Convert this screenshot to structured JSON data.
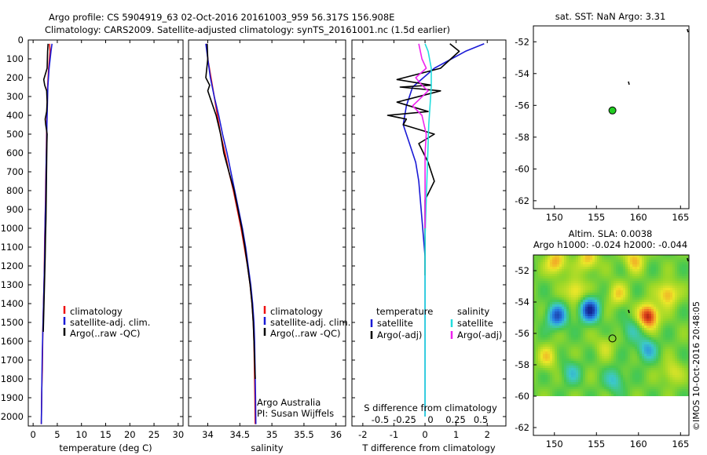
{
  "title_line1": "Argo profile: CS 5904919_63 02-Oct-2016 20161003_959 56.317S 156.908E",
  "title_line2": "Climatology: CARS2009. Satellite-adjusted climatology: synTS_20161001.nc (1.5d earlier)",
  "credit": "©IMOS 10-Oct-2016 20:48:05",
  "colors": {
    "climatology": "#ee1111",
    "satellite": "#1a1ad6",
    "argo": "#000000",
    "sat_salinity": "#22dddd",
    "argo_salinity": "#ee22ee",
    "marker": "#22cc22"
  },
  "chart_data": [
    {
      "type": "line",
      "id": "temperature",
      "xlabel": "temperature (deg C)",
      "ylabel": "",
      "xlim": [
        -1,
        31
      ],
      "ylim": [
        2050,
        0
      ],
      "y_inverted": true,
      "xticks": [
        "0",
        "5",
        "10",
        "15",
        "20",
        "25",
        "30"
      ],
      "yticks": [
        "0",
        "100",
        "200",
        "300",
        "400",
        "500",
        "600",
        "700",
        "800",
        "900",
        "1000",
        "1100",
        "1200",
        "1300",
        "1400",
        "1500",
        "1600",
        "1700",
        "1800",
        "1900",
        "2000"
      ],
      "legend": [
        "climatology",
        "satellite-adj. clim.",
        "Argo(..raw -QC)"
      ],
      "series": [
        {
          "name": "climatology",
          "x": [
            3.4,
            3.5,
            3.2,
            3.0,
            2.9,
            2.8,
            2.75,
            2.7,
            2.6,
            2.55,
            2.5,
            2.4,
            2.35,
            2.3,
            2.2,
            2.1,
            2.0,
            1.95,
            1.9,
            1.8,
            1.75,
            1.7
          ],
          "y": [
            20,
            60,
            150,
            250,
            350,
            450,
            550,
            650,
            750,
            850,
            950,
            1050,
            1150,
            1250,
            1350,
            1450,
            1550,
            1650,
            1750,
            1850,
            1950,
            2040
          ]
        },
        {
          "name": "satellite-adj. clim.",
          "x": [
            3.9,
            3.7,
            3.3,
            3.05,
            2.95,
            2.85,
            2.8,
            2.7,
            2.65,
            2.6,
            2.5,
            2.45,
            2.4,
            2.3,
            2.2,
            2.1,
            2.0,
            1.9,
            1.85,
            1.8,
            1.75,
            1.7
          ],
          "y": [
            20,
            60,
            150,
            250,
            350,
            450,
            550,
            650,
            750,
            850,
            950,
            1050,
            1150,
            1250,
            1350,
            1450,
            1550,
            1650,
            1750,
            1850,
            1950,
            2040
          ]
        },
        {
          "name": "Argo(..raw -QC)",
          "x": [
            3.1,
            3.0,
            2.9,
            2.2,
            2.4,
            2.8,
            2.9,
            2.8,
            2.5,
            2.6,
            2.9,
            2.85,
            2.8,
            2.75,
            2.7,
            2.65,
            2.55,
            2.5,
            2.4,
            2.3,
            2.2,
            2.1
          ],
          "y": [
            20,
            60,
            150,
            210,
            240,
            270,
            330,
            380,
            420,
            450,
            500,
            550,
            650,
            750,
            850,
            950,
            1050,
            1150,
            1250,
            1350,
            1450,
            1550
          ]
        }
      ]
    },
    {
      "type": "line",
      "id": "salinity",
      "xlabel": "salinity",
      "ylabel": "",
      "xlim": [
        33.7,
        36.15
      ],
      "ylim": [
        2050,
        0
      ],
      "y_inverted": true,
      "xticks": [
        "34",
        "34.5",
        "35",
        "35.5",
        "36"
      ],
      "legend": [
        "climatology",
        "satellite-adj. clim.",
        "Argo(..raw -QC)"
      ],
      "annotation": [
        "Argo Australia",
        "PI: Susan Wijffels"
      ],
      "series": [
        {
          "name": "climatology",
          "x": [
            33.98,
            34.0,
            34.05,
            34.1,
            34.15,
            34.2,
            34.27,
            34.33,
            34.4,
            34.46,
            34.52,
            34.57,
            34.62,
            34.66,
            34.69,
            34.71,
            34.72,
            34.725,
            34.73,
            34.735,
            34.74
          ],
          "y": [
            20,
            100,
            200,
            300,
            400,
            500,
            600,
            700,
            800,
            900,
            1000,
            1100,
            1200,
            1300,
            1400,
            1500,
            1600,
            1700,
            1800,
            1900,
            2040
          ]
        },
        {
          "name": "satellite-adj. clim.",
          "x": [
            33.97,
            34.0,
            34.04,
            34.1,
            34.17,
            34.23,
            34.3,
            34.36,
            34.42,
            34.48,
            34.54,
            34.59,
            34.63,
            34.67,
            34.7,
            34.72,
            34.73,
            34.735,
            34.74,
            34.745,
            34.75
          ],
          "y": [
            20,
            100,
            200,
            300,
            400,
            500,
            600,
            700,
            800,
            900,
            1000,
            1100,
            1200,
            1300,
            1400,
            1500,
            1600,
            1700,
            1800,
            1900,
            2040
          ]
        },
        {
          "name": "Argo(..raw -QC)",
          "x": [
            33.99,
            34.0,
            33.97,
            34.03,
            34.0,
            34.08,
            34.13,
            34.2,
            34.25,
            34.33,
            34.41,
            34.47,
            34.53,
            34.58,
            34.62,
            34.66,
            34.69,
            34.71,
            34.72,
            34.73,
            34.74
          ],
          "y": [
            20,
            100,
            200,
            240,
            270,
            350,
            400,
            500,
            600,
            700,
            800,
            900,
            1000,
            1100,
            1200,
            1300,
            1400,
            1500,
            1600,
            1700,
            1800
          ]
        }
      ]
    },
    {
      "type": "line",
      "id": "difference",
      "xlabel": "T difference from climatology",
      "x2label": "S difference from climatology",
      "xlim": [
        -2.35,
        2.6
      ],
      "ylim": [
        2050,
        0
      ],
      "y_inverted": true,
      "xticks": [
        "-2",
        "-1",
        "0",
        "1",
        "2"
      ],
      "x2ticks": [
        "-0.5",
        "-0.25",
        "0",
        "0.25",
        "0.5"
      ],
      "legend_left_title": "temperature",
      "legend_right_title": "salinity",
      "legend_left": [
        "satellite",
        "Argo(-adj)"
      ],
      "legend_right": [
        "satellite",
        "Argo(-adj)"
      ],
      "series": [
        {
          "name": "T satellite",
          "x": [
            1.9,
            1.3,
            0.3,
            -0.4,
            -0.6,
            -0.7,
            -0.5,
            -0.3,
            -0.2,
            -0.15,
            -0.1,
            -0.05,
            0.0,
            0.0,
            0.0,
            0.0,
            0.0,
            0.0,
            0.0,
            0.0,
            0.0
          ],
          "y": [
            20,
            60,
            150,
            250,
            350,
            450,
            550,
            650,
            750,
            850,
            950,
            1050,
            1150,
            1250,
            1350,
            1450,
            1550,
            1650,
            1750,
            1850,
            2000
          ]
        },
        {
          "name": "T Argo(-adj)",
          "x": [
            0.8,
            1.1,
            0.5,
            -0.9,
            0.2,
            -0.8,
            0.5,
            -0.9,
            0.1,
            -1.2,
            -0.6,
            -0.7,
            0.3,
            -0.2,
            0.1,
            0.3,
            0.0,
            0.0,
            0.0,
            0.0,
            0.0
          ],
          "y": [
            20,
            60,
            150,
            210,
            240,
            250,
            270,
            330,
            380,
            400,
            420,
            450,
            500,
            550,
            650,
            750,
            850,
            950,
            1050,
            1150,
            1250
          ]
        },
        {
          "name": "S satellite",
          "x": [
            0.0,
            0.05,
            0.1,
            0.1,
            0.08,
            0.06,
            0.05,
            0.04,
            0.03,
            0.02,
            0.01,
            0.0,
            0.0,
            0.0,
            0.0,
            0.0,
            0.0,
            0.0,
            0.0,
            0.0,
            0.0
          ],
          "y": [
            20,
            60,
            150,
            250,
            350,
            450,
            550,
            650,
            750,
            850,
            950,
            1050,
            1150,
            1250,
            1350,
            1450,
            1550,
            1650,
            1750,
            1850,
            2000
          ]
        },
        {
          "name": "S Argo(-adj)",
          "x": [
            -0.1,
            -0.05,
            0.02,
            -0.15,
            -0.05,
            0.05,
            -0.2,
            -0.05,
            0.02,
            0.0,
            0.0,
            0.0,
            0.0,
            0.0
          ],
          "y": [
            20,
            100,
            150,
            200,
            240,
            270,
            350,
            400,
            500,
            600,
            700,
            800,
            900,
            1000
          ]
        }
      ]
    },
    {
      "type": "scatter",
      "id": "sst_map",
      "title": "sat. SST: NaN Argo: 3.31",
      "xlim": [
        147.5,
        166
      ],
      "ylim": [
        -62.5,
        -51
      ],
      "xticks": [
        "150",
        "155",
        "160",
        "165"
      ],
      "yticks": [
        "-52",
        "-54",
        "-56",
        "-58",
        "-60",
        "-62"
      ],
      "points": [
        {
          "x": 156.9,
          "y": -56.32
        }
      ]
    },
    {
      "type": "heatmap",
      "id": "sla_map",
      "title_line1": "Altim. SLA: 0.0038",
      "title_line2": "Argo h1000: -0.024 h2000: -0.044",
      "xlim": [
        147.5,
        166
      ],
      "ylim": [
        -62.5,
        -51
      ],
      "xticks": [
        "150",
        "155",
        "160",
        "165"
      ],
      "yticks": [
        "-52",
        "-54",
        "-56",
        "-58",
        "-60",
        "-62"
      ],
      "data_bottom": -60,
      "blobs": [
        {
          "x": 154.2,
          "y": -54.5,
          "v": -1.0
        },
        {
          "x": 150.3,
          "y": -54.9,
          "v": -0.8
        },
        {
          "x": 161.2,
          "y": -54.9,
          "v": 1.0
        },
        {
          "x": 150.2,
          "y": -51.5,
          "v": 0.6
        },
        {
          "x": 154.0,
          "y": -51.3,
          "v": 0.5
        },
        {
          "x": 159.5,
          "y": -51.3,
          "v": 0.5
        },
        {
          "x": 163.5,
          "y": -53.5,
          "v": 0.6
        },
        {
          "x": 152.5,
          "y": -53.3,
          "v": 0.5
        },
        {
          "x": 149.2,
          "y": -57.5,
          "v": 0.4
        },
        {
          "x": 157.5,
          "y": -53.5,
          "v": 0.4
        },
        {
          "x": 161.0,
          "y": -57.0,
          "v": -0.5
        },
        {
          "x": 157.2,
          "y": -59.0,
          "v": -0.4
        },
        {
          "x": 152.0,
          "y": -58.5,
          "v": -0.35
        },
        {
          "x": 164.0,
          "y": -58.5,
          "v": 0.35
        },
        {
          "x": 156.0,
          "y": -56.8,
          "v": 0.25
        },
        {
          "x": 159.0,
          "y": -55.8,
          "v": -0.3
        }
      ],
      "points": [
        {
          "x": 156.9,
          "y": -56.32
        }
      ]
    }
  ]
}
